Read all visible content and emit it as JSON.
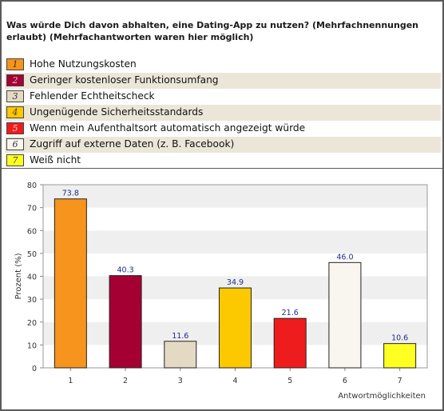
{
  "title": "Was würde Dich davon abhalten, eine Dating-App zu nutzen? (Mehrfachnennungen erlaubt) (Mehrfachantworten waren hier möglich)",
  "legend": [
    {
      "num": "1",
      "label": "Hohe Nutzungskosten",
      "color": "#f7941d",
      "numColor": "#5a2a00"
    },
    {
      "num": "2",
      "label": "Geringer kostenloser Funktionsumfang",
      "color": "#a50034",
      "numColor": "#f2c0c8"
    },
    {
      "num": "3",
      "label": "Fehlender Echtheitscheck",
      "color": "#e4d9c3",
      "numColor": "#333333"
    },
    {
      "num": "4",
      "label": "Ungenügende Sicherheitsstandards",
      "color": "#fcc800",
      "numColor": "#5a4200"
    },
    {
      "num": "5",
      "label": "Wenn mein Aufenthaltsort automatisch angezeigt würde",
      "color": "#ee1c1c",
      "numColor": "#ffd0d0"
    },
    {
      "num": "6",
      "label": "Zugriff auf externe Daten (z. B. Facebook)",
      "color": "#f8f6ee",
      "numColor": "#333333"
    },
    {
      "num": "7",
      "label": "Weiß nicht",
      "color": "#ffff22",
      "numColor": "#444400"
    }
  ],
  "chart_data": {
    "type": "bar",
    "categories": [
      "1",
      "2",
      "3",
      "4",
      "5",
      "6",
      "7"
    ],
    "values": [
      73.8,
      40.3,
      11.6,
      34.9,
      21.6,
      46.0,
      10.6
    ],
    "value_labels": [
      "73.8",
      "40.3",
      "11.6",
      "34.9",
      "21.6",
      "46.0",
      "10.6"
    ],
    "colors": [
      "#f7941d",
      "#a50034",
      "#e4d9c3",
      "#fcc800",
      "#ee1c1c",
      "#f8f6ee",
      "#ffff22"
    ],
    "ylim": [
      0,
      80
    ],
    "yticks": [
      "0",
      "10",
      "20",
      "30",
      "40",
      "50",
      "60",
      "70",
      "80"
    ],
    "ylabel": "Prozent (%)",
    "xlabel": "Antwortmöglichkeiten",
    "grid": "alternating horizontal bands",
    "value_label_color": "#1f2a8a"
  }
}
